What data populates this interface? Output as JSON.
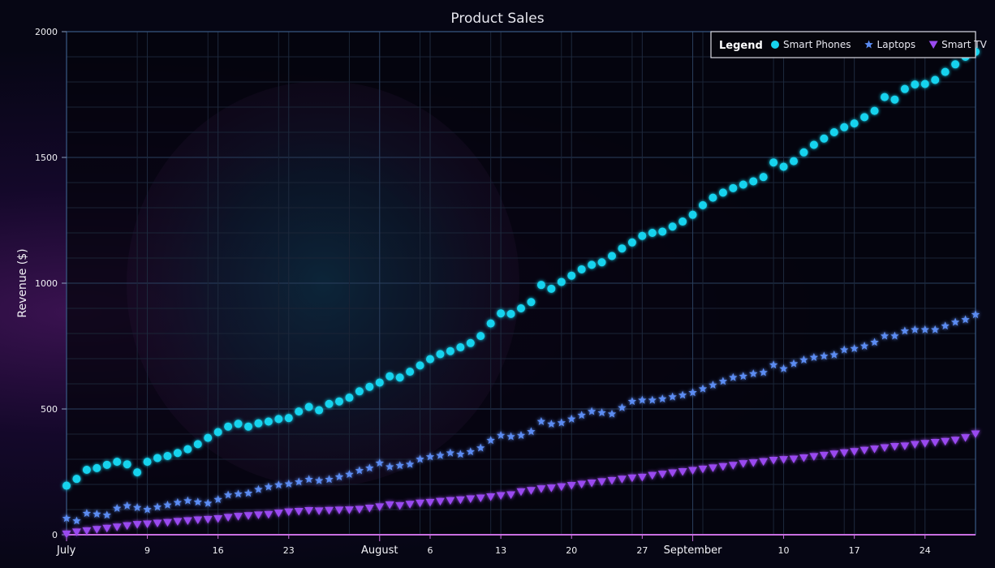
{
  "chart_data": {
    "type": "scatter",
    "title": "Product Sales",
    "ylabel": "Revenue ($)",
    "xlabel": "",
    "ylim": [
      0,
      2000
    ],
    "yticks": [
      0,
      500,
      1000,
      1500,
      2000
    ],
    "x_start_date": "2021-07-01",
    "x_end_date": "2021-09-29",
    "x_ticks": [
      {
        "date": "2021-07-01",
        "label": "July",
        "major": true
      },
      {
        "date": "2021-07-09",
        "label": "9",
        "major": false
      },
      {
        "date": "2021-07-16",
        "label": "16",
        "major": false
      },
      {
        "date": "2021-07-23",
        "label": "23",
        "major": false
      },
      {
        "date": "2021-08-01",
        "label": "August",
        "major": true
      },
      {
        "date": "2021-08-06",
        "label": "6",
        "major": false
      },
      {
        "date": "2021-08-13",
        "label": "13",
        "major": false
      },
      {
        "date": "2021-08-20",
        "label": "20",
        "major": false
      },
      {
        "date": "2021-08-27",
        "label": "27",
        "major": false
      },
      {
        "date": "2021-09-01",
        "label": "September",
        "major": true
      },
      {
        "date": "2021-09-10",
        "label": "10",
        "major": false
      },
      {
        "date": "2021-09-17",
        "label": "17",
        "major": false
      },
      {
        "date": "2021-09-24",
        "label": "24",
        "major": false
      }
    ],
    "grid": true,
    "legend": {
      "title": "Legend",
      "placement": "top-right"
    },
    "series": [
      {
        "name": "Smart Phones",
        "marker": "circle",
        "color": "#17d3ee",
        "values": [
          195,
          222,
          258,
          265,
          278,
          290,
          280,
          248,
          290,
          305,
          313,
          325,
          340,
          360,
          385,
          408,
          430,
          441,
          430,
          443,
          450,
          460,
          464,
          490,
          508,
          495,
          520,
          530,
          545,
          570,
          588,
          605,
          630,
          625,
          648,
          673,
          698,
          718,
          730,
          745,
          762,
          790,
          840,
          880,
          878,
          900,
          925,
          993,
          978,
          1005,
          1030,
          1055,
          1073,
          1083,
          1108,
          1138,
          1162,
          1188,
          1200,
          1205,
          1225,
          1245,
          1272,
          1310,
          1340,
          1360,
          1378,
          1392,
          1405,
          1422,
          1480,
          1463,
          1485,
          1520,
          1550,
          1575,
          1600,
          1620,
          1635,
          1660,
          1685,
          1740,
          1730,
          1772,
          1790,
          1792,
          1808,
          1840,
          1870,
          1900,
          1920
        ]
      },
      {
        "name": "Laptops",
        "marker": "star",
        "color": "#5b8cf2",
        "values": [
          65,
          55,
          85,
          82,
          78,
          105,
          115,
          108,
          100,
          110,
          118,
          128,
          135,
          130,
          125,
          140,
          158,
          162,
          165,
          180,
          190,
          198,
          202,
          210,
          220,
          215,
          220,
          230,
          240,
          255,
          265,
          285,
          270,
          275,
          280,
          300,
          310,
          315,
          325,
          320,
          330,
          345,
          375,
          395,
          390,
          395,
          410,
          450,
          440,
          445,
          460,
          475,
          490,
          485,
          480,
          505,
          530,
          535,
          535,
          540,
          548,
          555,
          565,
          580,
          595,
          610,
          625,
          630,
          640,
          645,
          675,
          660,
          680,
          695,
          705,
          710,
          715,
          735,
          740,
          750,
          765,
          790,
          790,
          810,
          815,
          815,
          815,
          830,
          845,
          855,
          875
        ]
      },
      {
        "name": "Smart TV",
        "marker": "triangle",
        "color": "#9a4af0",
        "values": [
          2,
          10,
          15,
          20,
          25,
          30,
          35,
          40,
          42,
          45,
          48,
          52,
          55,
          58,
          60,
          63,
          68,
          72,
          75,
          78,
          80,
          85,
          90,
          92,
          95,
          94,
          96,
          97,
          98,
          100,
          105,
          110,
          118,
          115,
          120,
          125,
          128,
          132,
          135,
          138,
          142,
          145,
          150,
          155,
          158,
          170,
          175,
          182,
          185,
          190,
          195,
          200,
          205,
          210,
          215,
          220,
          225,
          228,
          235,
          240,
          245,
          250,
          255,
          260,
          265,
          270,
          275,
          282,
          285,
          290,
          295,
          298,
          300,
          305,
          310,
          315,
          320,
          325,
          330,
          335,
          340,
          345,
          350,
          352,
          358,
          362,
          366,
          370,
          375,
          385,
          400
        ]
      }
    ]
  }
}
